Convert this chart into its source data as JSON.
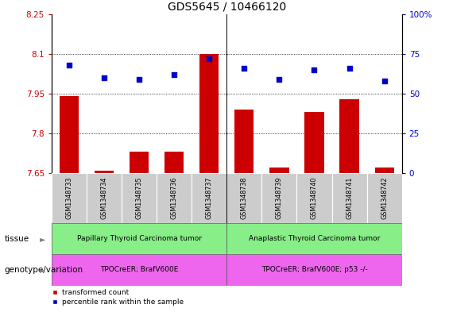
{
  "title": "GDS5645 / 10466120",
  "samples": [
    "GSM1348733",
    "GSM1348734",
    "GSM1348735",
    "GSM1348736",
    "GSM1348737",
    "GSM1348738",
    "GSM1348739",
    "GSM1348740",
    "GSM1348741",
    "GSM1348742"
  ],
  "transformed_count": [
    7.94,
    7.66,
    7.73,
    7.73,
    8.1,
    7.89,
    7.67,
    7.88,
    7.93,
    7.67
  ],
  "percentile_rank": [
    68,
    60,
    59,
    62,
    72,
    66,
    59,
    65,
    66,
    58
  ],
  "ylim_left": [
    7.65,
    8.25
  ],
  "ylim_right": [
    0,
    100
  ],
  "yticks_left": [
    7.65,
    7.8,
    7.95,
    8.1,
    8.25
  ],
  "yticks_right": [
    0,
    25,
    50,
    75,
    100
  ],
  "ytick_labels_left": [
    "7.65",
    "7.8",
    "7.95",
    "8.1",
    "8.25"
  ],
  "ytick_labels_right": [
    "0",
    "25",
    "50",
    "75",
    "100%"
  ],
  "hlines": [
    7.8,
    7.95,
    8.1
  ],
  "bar_color": "#cc0000",
  "dot_color": "#0000cc",
  "bar_width": 0.55,
  "tissue_groups": [
    {
      "label": "Papillary Thyroid Carcinoma tumor",
      "indices": [
        0,
        4
      ],
      "color": "#88ee88"
    },
    {
      "label": "Anaplastic Thyroid Carcinoma tumor",
      "indices": [
        5,
        9
      ],
      "color": "#88ee88"
    }
  ],
  "genotype_groups": [
    {
      "label": "TPOCreER; BrafV600E",
      "indices": [
        0,
        4
      ],
      "color": "#ee66ee"
    },
    {
      "label": "TPOCreER; BrafV600E; p53 -/-",
      "indices": [
        5,
        9
      ],
      "color": "#ee66ee"
    }
  ],
  "tissue_label": "tissue",
  "genotype_label": "genotype/variation",
  "legend_entries": [
    {
      "color": "#cc0000",
      "label": "transformed count"
    },
    {
      "color": "#0000cc",
      "label": "percentile rank within the sample"
    }
  ],
  "title_fontsize": 10,
  "tick_fontsize": 7.5,
  "sample_bg_color": "#cccccc",
  "bar_left_color": "#cc0000",
  "dot_right_color": "#0000cc"
}
